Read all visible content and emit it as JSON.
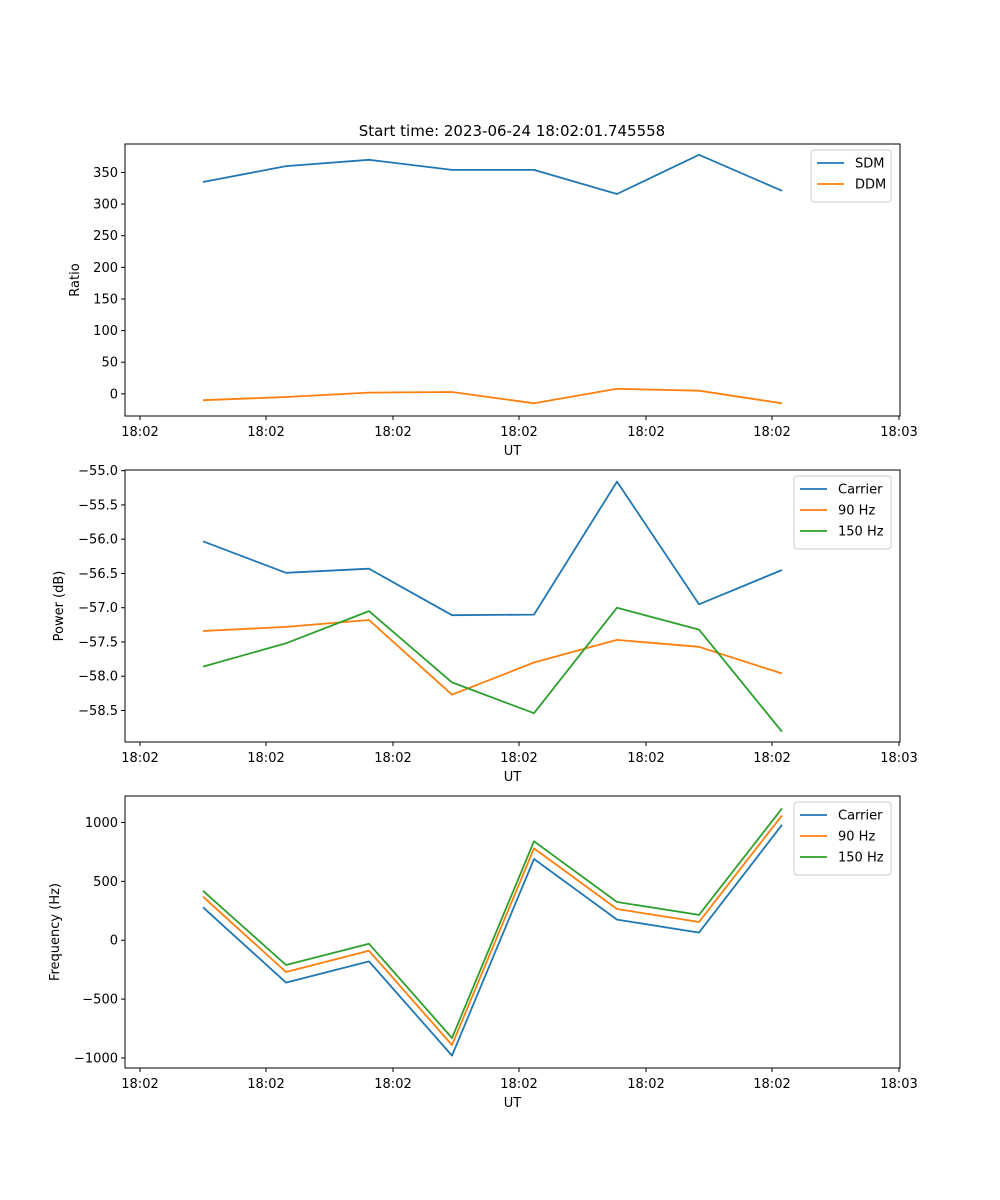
{
  "title": "Start time: 2023-06-24 18:02:01.745558",
  "colors": {
    "series1": "#1f77b4",
    "series2": "#ff7f0e",
    "series3": "#2ca02c"
  },
  "chart_data": [
    {
      "type": "line",
      "title": "Start time: 2023-06-24 18:02:01.745558",
      "xlabel": "UT",
      "ylabel": "Ratio",
      "x_tick_labels": [
        "18:02",
        "18:02",
        "18:02",
        "18:02",
        "18:02",
        "18:02",
        "18:03"
      ],
      "y_ticks": [
        0,
        50,
        100,
        150,
        200,
        250,
        300,
        350
      ],
      "ylim": [
        -35,
        395
      ],
      "legend_position": "top-right",
      "grid": false,
      "series": [
        {
          "name": "SDM",
          "color": "#1f77b4",
          "values": [
            335,
            360,
            370,
            354,
            354,
            316,
            378,
            321
          ]
        },
        {
          "name": "DDM",
          "color": "#ff7f0e",
          "values": [
            -10,
            -5,
            2,
            3,
            -15,
            8,
            5,
            -15
          ]
        }
      ]
    },
    {
      "type": "line",
      "title": "",
      "xlabel": "UT",
      "ylabel": "Power (dB)",
      "x_tick_labels": [
        "18:02",
        "18:02",
        "18:02",
        "18:02",
        "18:02",
        "18:02",
        "18:03"
      ],
      "y_ticks": [
        -58.5,
        -58.0,
        -57.5,
        -57.0,
        -56.5,
        -56.0,
        -55.5,
        -55.0
      ],
      "y_tick_labels": [
        "−58.5",
        "−58.0",
        "−57.5",
        "−57.0",
        "−56.5",
        "−56.0",
        "−55.5",
        "−55.0"
      ],
      "ylim": [
        -58.96,
        -54.99
      ],
      "legend_position": "top-right",
      "grid": false,
      "series": [
        {
          "name": "Carrier",
          "color": "#1f77b4",
          "values": [
            -56.03,
            -56.49,
            -56.43,
            -57.11,
            -57.1,
            -55.16,
            -56.95,
            -56.45
          ]
        },
        {
          "name": "90 Hz",
          "color": "#ff7f0e",
          "values": [
            -57.34,
            -57.28,
            -57.18,
            -58.27,
            -57.8,
            -57.47,
            -57.57,
            -57.96
          ]
        },
        {
          "name": "150 Hz",
          "color": "#2ca02c",
          "values": [
            -57.86,
            -57.52,
            -57.05,
            -58.09,
            -58.54,
            -57.0,
            -57.32,
            -58.81
          ]
        }
      ]
    },
    {
      "type": "line",
      "title": "",
      "xlabel": "UT",
      "ylabel": "Frequency (Hz)",
      "x_tick_labels": [
        "18:02",
        "18:02",
        "18:02",
        "18:02",
        "18:02",
        "18:02",
        "18:03"
      ],
      "y_ticks": [
        -1000,
        -500,
        0,
        500,
        1000
      ],
      "y_tick_labels": [
        "−1000",
        "−500",
        "0",
        "500",
        "1000"
      ],
      "ylim": [
        -1085,
        1225
      ],
      "legend_position": "top-right",
      "grid": false,
      "series": [
        {
          "name": "Carrier",
          "color": "#1f77b4",
          "values": [
            280,
            -360,
            -180,
            -980,
            690,
            175,
            65,
            980
          ]
        },
        {
          "name": "90 Hz",
          "color": "#ff7f0e",
          "values": [
            370,
            -270,
            -90,
            -890,
            780,
            265,
            155,
            1060
          ]
        },
        {
          "name": "150 Hz",
          "color": "#2ca02c",
          "values": [
            420,
            -210,
            -30,
            -830,
            840,
            325,
            215,
            1120
          ]
        }
      ]
    }
  ]
}
